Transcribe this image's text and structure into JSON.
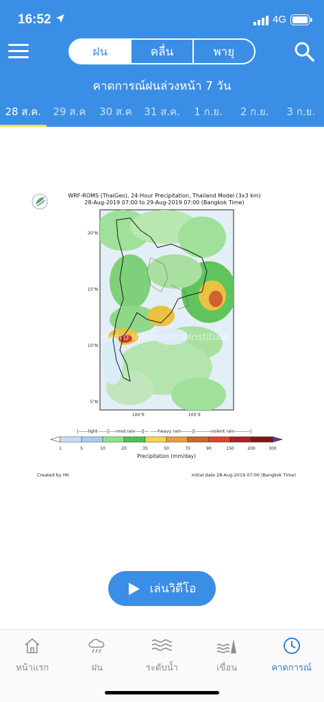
{
  "status_bar": {
    "time": "16:52",
    "network": "4G"
  },
  "segments": [
    "ฝน",
    "คลื่น",
    "พายุ"
  ],
  "subtitle": "คาดการณ์ฝนล่วงหน้า 7 วัน",
  "dates": [
    "28 ส.ค.",
    "29 ส.ค",
    "30 ส.ค",
    "31 ส.ค.",
    "1 ก.ย.",
    "2 ก.ย.",
    "3 ก.ย."
  ],
  "active_date_index": 0,
  "forecast_map": {
    "title_line1": "WRF-ROMS (ThaiGeo), 24-Hour Precipitation, Thailand Model (3x3 km)",
    "title_line2": "28-Aug-2019 07:00 to 29-Aug-2019 07:00 (Bangkok Time)",
    "lat_labels": [
      "20°N",
      "15°N",
      "10°N",
      "5°N"
    ],
    "lon_labels": [
      "100°E",
      "105°E"
    ],
    "watermark": "Hydro Informatics Institute",
    "legend_categories": "|------light------||----mod.rain----||--- -----heavy rain-------||----------violent rain----------|",
    "legend_ticks": [
      "1",
      "5",
      "10",
      "20",
      "35",
      "50",
      "70",
      "90",
      "150",
      "200",
      "300"
    ],
    "legend_colors": [
      "#c6dcf5",
      "#a8cdf0",
      "#8fe08a",
      "#4fc34f",
      "#f2d64a",
      "#e0a03a",
      "#c8682a",
      "#e04030",
      "#b02020",
      "#801818",
      "#7a2aa8"
    ],
    "legend_label": "Precipitation (mm/day)",
    "created_by": "Created by HII",
    "initial_date": "initial date 28-Aug-2019 07:00 (Bangkok Time)"
  },
  "play_button_label": "เล่นวิดีโอ",
  "tabbar": [
    {
      "label": "หน้าแรก",
      "icon": "home-icon"
    },
    {
      "label": "ฝน",
      "icon": "rain-cloud-icon"
    },
    {
      "label": "ระดับน้ำ",
      "icon": "water-level-icon"
    },
    {
      "label": "เขื่อน",
      "icon": "dam-icon"
    },
    {
      "label": "คาดการณ์",
      "icon": "clock-icon"
    }
  ],
  "colors": {
    "header": "#3b8ee5",
    "active_underline": "#f3e04a",
    "active_tab": "#2f7fe0"
  }
}
